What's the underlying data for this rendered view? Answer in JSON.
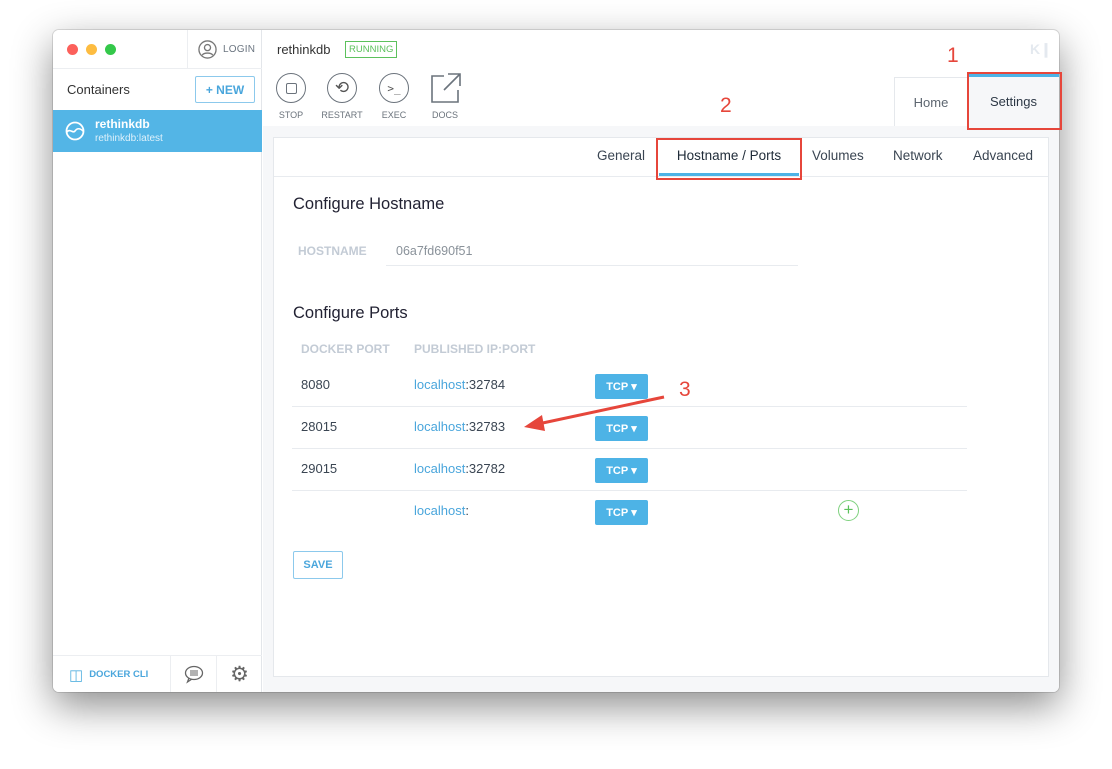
{
  "sidebar": {
    "login_label": "LOGIN",
    "containers_title": "Containers",
    "new_button": "+ NEW",
    "containers": [
      {
        "name": "rethinkdb",
        "image": "rethinkdb:latest",
        "selected": true
      }
    ],
    "footer": {
      "docker_cli": "DOCKER CLI"
    }
  },
  "header": {
    "container_name": "rethinkdb",
    "status": "RUNNING",
    "actions": [
      {
        "label": "STOP",
        "icon": "stop-icon"
      },
      {
        "label": "RESTART",
        "icon": "restart-icon"
      },
      {
        "label": "EXEC",
        "icon": "terminal-icon"
      },
      {
        "label": "DOCS",
        "icon": "external-link-icon"
      }
    ],
    "view_tabs": [
      "Home",
      "Settings"
    ],
    "active_view": "Settings"
  },
  "settings": {
    "tabs": [
      "General",
      "Hostname / Ports",
      "Volumes",
      "Network",
      "Advanced"
    ],
    "active_tab": "Hostname / Ports",
    "hostname_section": "Configure Hostname",
    "hostname_label": "HOSTNAME",
    "hostname_value": "06a7fd690f51",
    "ports_section": "Configure Ports",
    "col_docker_port": "DOCKER PORT",
    "col_published": "PUBLISHED IP:PORT",
    "ports": [
      {
        "docker": "8080",
        "host": "localhost",
        "port": ":32784",
        "protocol": "TCP"
      },
      {
        "docker": "28015",
        "host": "localhost",
        "port": ":32783",
        "protocol": "TCP"
      },
      {
        "docker": "29015",
        "host": "localhost",
        "port": ":32782",
        "protocol": "TCP"
      },
      {
        "docker": "",
        "host": "localhost",
        "port": ":",
        "protocol": "TCP"
      }
    ],
    "save_button": "SAVE"
  },
  "annotations": [
    "1",
    "2",
    "3"
  ],
  "colors": {
    "accent": "#4db3e6",
    "running": "#5cc15c",
    "annotation": "#e6463b"
  }
}
